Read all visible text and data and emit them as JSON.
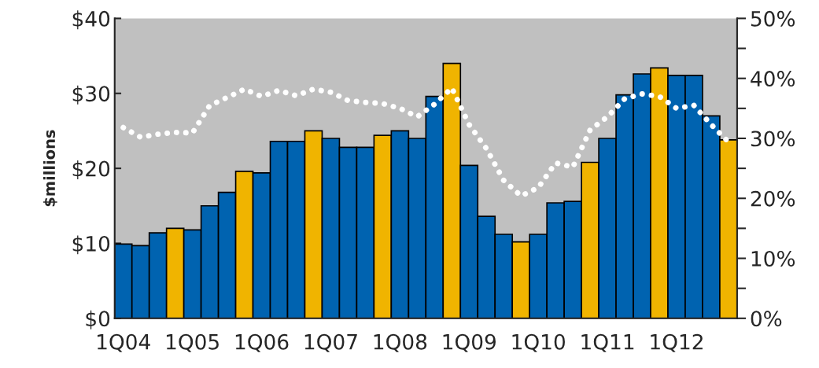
{
  "chart_data": {
    "type": "bar",
    "ylabel": "$millions",
    "categories": [
      "1Q04",
      null,
      null,
      null,
      "1Q05",
      null,
      null,
      null,
      "1Q06",
      null,
      null,
      null,
      "1Q07",
      null,
      null,
      null,
      "1Q08",
      null,
      null,
      null,
      "1Q09",
      null,
      null,
      null,
      "1Q10",
      null,
      null,
      null,
      "1Q11",
      null,
      null,
      null,
      "1Q12",
      null,
      null,
      null
    ],
    "series": [
      {
        "values": [
          9.9,
          9.7,
          11.4,
          12.0,
          11.8,
          15.0,
          16.8,
          19.6,
          19.4,
          23.6,
          23.6,
          25.0,
          24.0,
          22.8,
          22.8,
          24.4,
          25.0,
          24.0,
          29.6,
          34.0,
          20.4,
          13.6,
          11.2,
          10.2,
          11.2,
          15.4,
          15.6,
          20.8,
          24.0,
          29.8,
          32.6,
          33.4,
          32.4,
          32.4,
          27.0,
          23.8
        ],
        "colors": [
          "#0063b0",
          "#0063b0",
          "#0063b0",
          "#f0b400",
          "#0063b0",
          "#0063b0",
          "#0063b0",
          "#f0b400",
          "#0063b0",
          "#0063b0",
          "#0063b0",
          "#f0b400",
          "#0063b0",
          "#0063b0",
          "#0063b0",
          "#f0b400",
          "#0063b0",
          "#0063b0",
          "#0063b0",
          "#f0b400",
          "#0063b0",
          "#0063b0",
          "#0063b0",
          "#f0b400",
          "#0063b0",
          "#0063b0",
          "#0063b0",
          "#f0b400",
          "#0063b0",
          "#0063b0",
          "#0063b0",
          "#f0b400",
          "#0063b0",
          "#0063b0",
          "#0063b0",
          "#f0b400"
        ]
      },
      {
        "type": "line",
        "axis": "y2",
        "color": "#ffffff",
        "line_style": "dotted",
        "values": [
          31.8,
          30.2,
          30.7,
          31.0,
          30.9,
          35.5,
          36.8,
          38.2,
          37.0,
          38.0,
          37.1,
          38.2,
          37.7,
          36.3,
          36.0,
          35.8,
          35.0,
          33.6,
          35.7,
          38.4,
          32.3,
          28.3,
          23.0,
          20.4,
          21.8,
          25.9,
          25.2,
          31.4,
          33.6,
          36.6,
          37.4,
          37.0,
          35.0,
          35.5,
          32.3,
          29.4
        ]
      }
    ],
    "ylim": [
      0,
      40
    ],
    "yticks": [
      {
        "value": 0,
        "label": "$0"
      },
      {
        "value": 10,
        "label": "$10"
      },
      {
        "value": 20,
        "label": "$20"
      },
      {
        "value": 30,
        "label": "$30"
      },
      {
        "value": 40,
        "label": "$40"
      }
    ],
    "y2lim": [
      0,
      50
    ],
    "y2ticks": [
      {
        "value": 0,
        "label": "0%"
      },
      {
        "value": 5,
        "label": null
      },
      {
        "value": 10,
        "label": "10%"
      },
      {
        "value": 15,
        "label": null
      },
      {
        "value": 20,
        "label": "20%"
      },
      {
        "value": 25,
        "label": null
      },
      {
        "value": 30,
        "label": "30%"
      },
      {
        "value": 35,
        "label": null
      },
      {
        "value": 40,
        "label": "40%"
      },
      {
        "value": 45,
        "label": null
      },
      {
        "value": 50,
        "label": "50%"
      }
    ],
    "grid": false,
    "legend": false
  }
}
